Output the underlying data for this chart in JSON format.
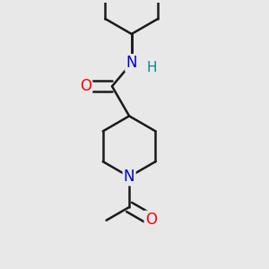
{
  "background_color": "#e8e8e8",
  "bond_color": "#1a1a1a",
  "bond_width": 1.8,
  "atom_colors": {
    "O": "#ff0000",
    "N": "#0000cd",
    "H": "#008b8b",
    "C": "#1a1a1a"
  },
  "figsize": [
    3.0,
    3.0
  ],
  "dpi": 100,
  "font_size_atom": 12,
  "font_size_H": 11
}
